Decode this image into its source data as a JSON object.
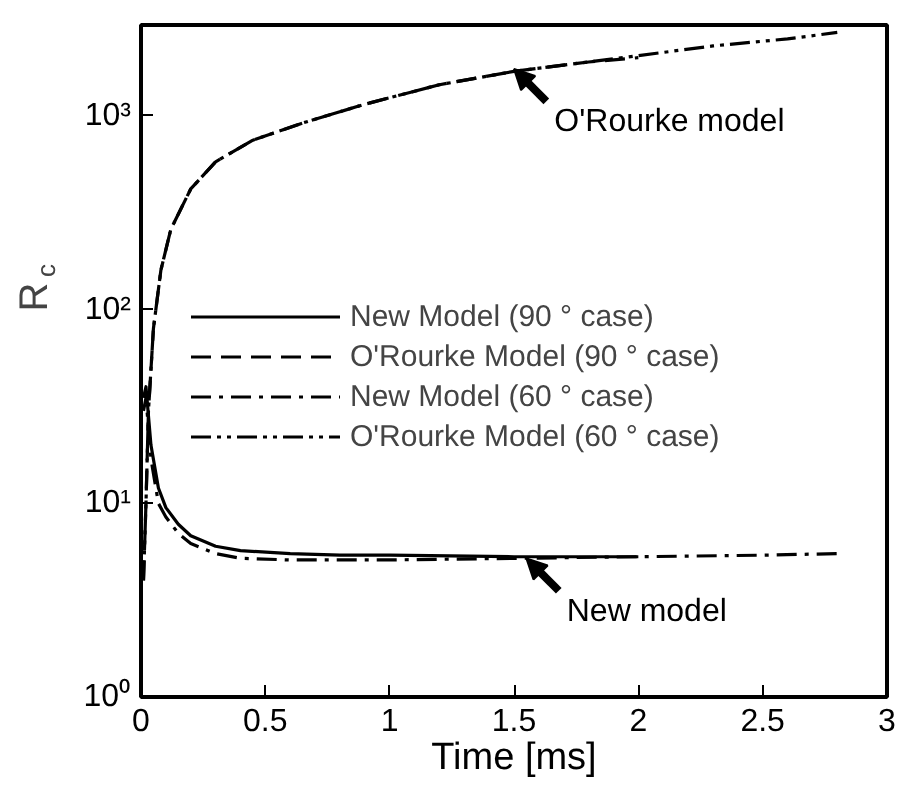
{
  "chart_data": {
    "type": "line",
    "xlabel": "Time [ms]",
    "ylabel": "R$_{c}$",
    "log": "y",
    "xlim": [
      0,
      3
    ],
    "ylim": [
      1,
      2950
    ],
    "xticks": [
      0,
      0.5,
      1,
      1.5,
      2,
      2.5,
      3
    ],
    "yticks": [
      {
        "value": 1,
        "label": "10⁰"
      },
      {
        "value": 10,
        "label": "10¹"
      },
      {
        "value": 100,
        "label": "10²"
      },
      {
        "value": 1000,
        "label": "10³"
      }
    ],
    "legend": "left",
    "grid": false,
    "series": [
      {
        "name": "New Model (90 ° case)",
        "color": "#000000",
        "line_style": "solid",
        "x": [
          0.01,
          0.02,
          0.04,
          0.07,
          0.1,
          0.15,
          0.2,
          0.3,
          0.4,
          0.6,
          0.8,
          1.0,
          1.5,
          2.0
        ],
        "values": [
          35,
          40,
          20,
          12,
          9.5,
          7.8,
          6.8,
          6.0,
          5.7,
          5.5,
          5.4,
          5.4,
          5.3,
          5.3
        ]
      },
      {
        "name": "O'Rourke Model (90 ° case)",
        "color": "#000000",
        "line_style": "dashed",
        "x": [
          0.01,
          0.02,
          0.03,
          0.05,
          0.08,
          0.12,
          0.2,
          0.3,
          0.45,
          0.65,
          0.9,
          1.2,
          1.5,
          1.8,
          2.0
        ],
        "values": [
          4,
          10,
          30,
          80,
          160,
          260,
          420,
          580,
          750,
          920,
          1150,
          1450,
          1700,
          1900,
          2000
        ]
      },
      {
        "name": "New Model (60 ° case)",
        "color": "#000000",
        "line_style": "dashdot",
        "x": [
          0.01,
          0.02,
          0.04,
          0.07,
          0.1,
          0.15,
          0.2,
          0.3,
          0.4,
          0.6,
          1.0,
          1.5,
          2.0,
          2.5,
          2.8
        ],
        "values": [
          30,
          35,
          17,
          10,
          8.5,
          7,
          6.2,
          5.5,
          5.2,
          5.1,
          5.1,
          5.2,
          5.3,
          5.4,
          5.5
        ]
      },
      {
        "name": "O'Rourke Model (60 ° case)",
        "color": "#000000",
        "line_style": "dashdotdot",
        "x": [
          0.01,
          0.02,
          0.03,
          0.05,
          0.08,
          0.12,
          0.2,
          0.3,
          0.45,
          0.65,
          0.9,
          1.2,
          1.5,
          1.8,
          2.0,
          2.3,
          2.6,
          2.8
        ],
        "values": [
          4,
          10,
          30,
          80,
          160,
          260,
          420,
          580,
          750,
          920,
          1150,
          1450,
          1700,
          1900,
          2050,
          2300,
          2500,
          2700
        ]
      }
    ],
    "annotations": [
      {
        "text": "O'Rourke model",
        "x": 1.5,
        "y": 1750
      },
      {
        "text": "New model",
        "x": 1.55,
        "y": 5.2
      }
    ]
  }
}
